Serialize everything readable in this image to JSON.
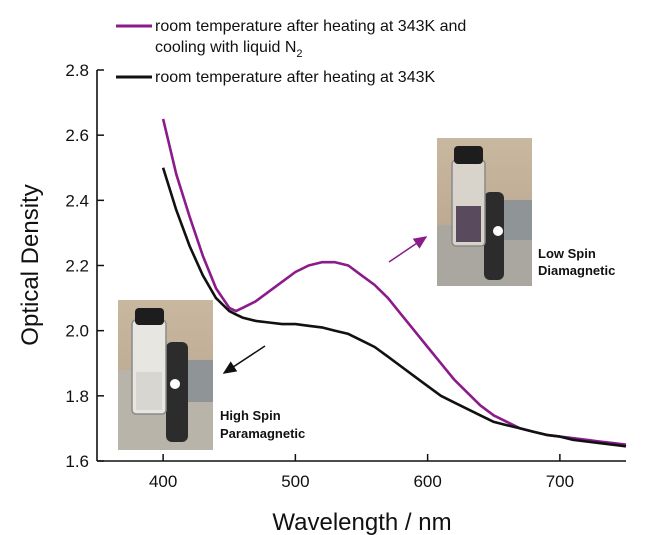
{
  "chart_data": {
    "type": "line",
    "xlabel": "Wavelength / nm",
    "ylabel": "Optical Density",
    "xlim": [
      350,
      750
    ],
    "ylim": [
      1.6,
      2.8
    ],
    "xticks": [
      400,
      500,
      600,
      700
    ],
    "yticks": [
      "1.6",
      "1.8",
      "2.0",
      "2.2",
      "2.4",
      "2.6",
      "2.8"
    ],
    "legend": {
      "placement": "top",
      "entries": [
        {
          "label_line1": "room temperature after heating at 343K and",
          "label_line2": "cooling with liquid N",
          "label_sub": "2",
          "color": "#8b1a8b"
        },
        {
          "label_line1": "room temperature after heating at 343K",
          "color": "#111111"
        }
      ]
    },
    "series": [
      {
        "color": "#8b1a8b",
        "x": [
          400,
          410,
          420,
          430,
          440,
          450,
          455,
          460,
          470,
          480,
          490,
          500,
          510,
          520,
          530,
          540,
          550,
          560,
          570,
          580,
          590,
          600,
          610,
          620,
          630,
          640,
          650,
          660,
          670,
          680,
          690,
          700,
          710,
          720,
          730,
          740,
          750
        ],
        "y": [
          2.65,
          2.48,
          2.35,
          2.23,
          2.13,
          2.07,
          2.06,
          2.07,
          2.09,
          2.12,
          2.15,
          2.18,
          2.2,
          2.21,
          2.21,
          2.2,
          2.17,
          2.14,
          2.1,
          2.05,
          2.0,
          1.95,
          1.9,
          1.85,
          1.81,
          1.77,
          1.74,
          1.72,
          1.7,
          1.69,
          1.68,
          1.675,
          1.67,
          1.665,
          1.66,
          1.655,
          1.65
        ]
      },
      {
        "color": "#111111",
        "x": [
          400,
          410,
          420,
          430,
          440,
          450,
          455,
          460,
          470,
          480,
          490,
          500,
          510,
          520,
          530,
          540,
          550,
          560,
          570,
          580,
          590,
          600,
          610,
          620,
          630,
          640,
          650,
          660,
          670,
          680,
          690,
          700,
          710,
          720,
          730,
          740,
          750
        ],
        "y": [
          2.5,
          2.37,
          2.26,
          2.17,
          2.1,
          2.06,
          2.05,
          2.04,
          2.03,
          2.025,
          2.02,
          2.02,
          2.015,
          2.01,
          2.0,
          1.99,
          1.97,
          1.95,
          1.92,
          1.89,
          1.86,
          1.83,
          1.8,
          1.78,
          1.76,
          1.74,
          1.72,
          1.71,
          1.7,
          1.69,
          1.68,
          1.675,
          1.665,
          1.66,
          1.655,
          1.65,
          1.645
        ]
      }
    ],
    "annotations": [
      {
        "id": "low",
        "line1": "Low Spin",
        "line2": "Diamagnetic",
        "arrow_color": "#8b1a8b"
      },
      {
        "id": "high",
        "line1": "High Spin",
        "line2": "Paramagnetic",
        "arrow_color": "#111111"
      }
    ]
  }
}
